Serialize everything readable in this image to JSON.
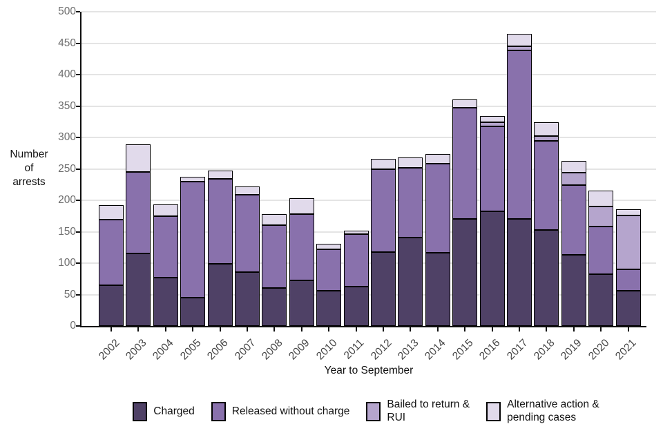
{
  "figure": {
    "y_axis_title": "Number of arrests",
    "x_axis_title": "Year to September",
    "y_tick_labels": [
      "0",
      "50",
      "100",
      "150",
      "200",
      "250",
      "300",
      "350",
      "400",
      "450",
      "500"
    ]
  },
  "colors": {
    "charged": "#4f4166",
    "released_without_charge": "#8971ac",
    "bailed_to_return_rui": "#b5a5cd",
    "alternative_action_pending": "#e1daeb",
    "segment_border": "#000000",
    "axis_line": "#0d0d0d",
    "gridline": "#e4e4e4",
    "y_tick_text": "#6e6e6e",
    "x_tick_text": "#454545",
    "background": "#ffffff"
  },
  "chart_data": {
    "type": "bar",
    "stacked": true,
    "title": "",
    "xlabel": "Year to September",
    "ylabel": "Number of arrests",
    "ylim": [
      0,
      500
    ],
    "ytick_step": 50,
    "grid": true,
    "legend_position": "bottom",
    "categories": [
      "2002",
      "2003",
      "2004",
      "2005",
      "2006",
      "2007",
      "2008",
      "2009",
      "2010",
      "2011",
      "2012",
      "2013",
      "2014",
      "2015",
      "2016",
      "2017",
      "2018",
      "2019",
      "2020",
      "2021"
    ],
    "series": [
      {
        "name": "Charged",
        "legend_label": "Charged",
        "color": "#4f4166",
        "values": [
          65,
          115,
          77,
          45,
          99,
          86,
          61,
          73,
          56,
          63,
          118,
          141,
          117,
          170,
          182,
          170,
          153,
          113,
          82,
          56
        ]
      },
      {
        "name": "Released without charge",
        "legend_label": "Released without charge",
        "color": "#8971ac",
        "values": [
          104,
          130,
          98,
          185,
          135,
          123,
          99,
          105,
          66,
          83,
          132,
          111,
          141,
          177,
          136,
          268,
          142,
          111,
          76,
          34
        ]
      },
      {
        "name": "Bailed to return & RUI",
        "legend_label": "Bailed to return &\nRUI",
        "color": "#b5a5cd",
        "values": [
          0,
          0,
          0,
          0,
          0,
          0,
          0,
          0,
          0,
          0,
          0,
          0,
          0,
          0,
          6,
          7,
          7,
          20,
          32,
          86
        ]
      },
      {
        "name": "Alternative action & pending cases",
        "legend_label": "Alternative action &\npending cases",
        "color": "#e1daeb",
        "values": [
          23,
          44,
          18,
          7,
          13,
          13,
          18,
          25,
          9,
          6,
          16,
          16,
          16,
          14,
          10,
          20,
          22,
          19,
          25,
          10
        ]
      }
    ]
  }
}
